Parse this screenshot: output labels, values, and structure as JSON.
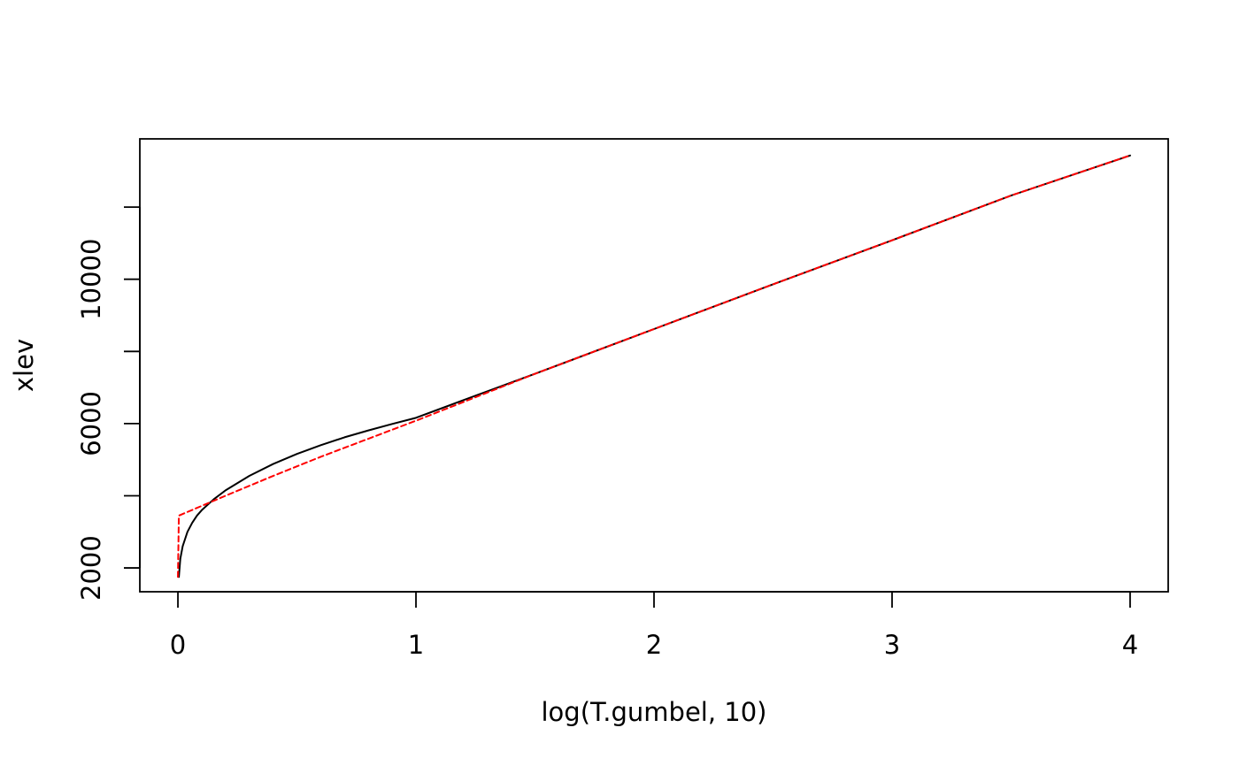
{
  "chart_data": {
    "type": "line",
    "title": "",
    "xlabel": "log(T.gumbel, 10)",
    "ylabel": "xlev",
    "xlim": [
      -0.16,
      4.16
    ],
    "ylim": [
      1340,
      13890
    ],
    "x_ticks": [
      0,
      1,
      2,
      3,
      4
    ],
    "x_tick_labels": [
      "0",
      "1",
      "2",
      "3",
      "4"
    ],
    "y_ticks": [
      2000,
      4000,
      6000,
      8000,
      10000,
      12000
    ],
    "y_tick_labels": [
      "2000",
      "",
      "6000",
      "",
      "10000",
      ""
    ],
    "grid": false,
    "legend": "none",
    "series": [
      {
        "color": "#000000",
        "dash": "solid",
        "x": [
          0.004,
          0.01,
          0.02,
          0.04,
          0.06,
          0.08,
          0.1,
          0.15,
          0.2,
          0.3,
          0.4,
          0.5,
          0.6,
          0.7,
          0.8,
          0.9,
          1.0,
          1.2,
          1.5,
          2.0,
          2.5,
          3.0,
          3.5,
          4.0
        ],
        "y": [
          1750,
          2250,
          2600,
          3000,
          3250,
          3450,
          3600,
          3900,
          4150,
          4550,
          4880,
          5160,
          5400,
          5620,
          5810,
          5990,
          6160,
          6650,
          7380,
          8620,
          9860,
          11080,
          12320,
          13430
        ]
      },
      {
        "color": "#ff0000",
        "dash": "dashed",
        "x": [
          0.0,
          0.004,
          0.2,
          0.4,
          0.6,
          0.8,
          1.0,
          1.2,
          1.5,
          2.0,
          2.5,
          3.0,
          3.5,
          4.0
        ],
        "y": [
          1750,
          3450,
          4000,
          4550,
          5080,
          5580,
          6080,
          6600,
          7380,
          8620,
          9860,
          11080,
          12320,
          13430
        ]
      }
    ]
  }
}
